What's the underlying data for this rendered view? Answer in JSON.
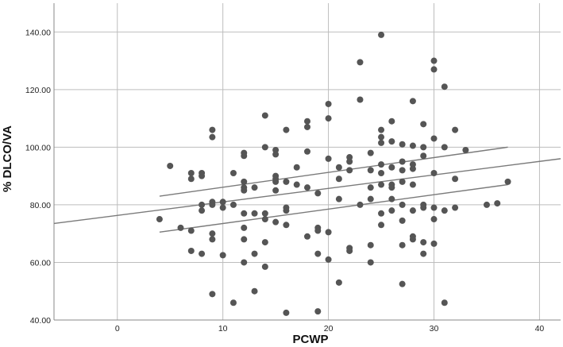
{
  "chart_data": {
    "type": "scatter",
    "title": "",
    "xlabel": "PCWP",
    "ylabel": "% DLCO/VA",
    "xlim": [
      -6,
      42
    ],
    "ylim": [
      40,
      150
    ],
    "x_ticks": [
      0,
      10,
      20,
      30,
      40
    ],
    "x_tick_labels": [
      "0",
      "10",
      "20",
      "30",
      "40"
    ],
    "y_ticks": [
      40,
      60,
      80,
      100,
      120,
      140
    ],
    "y_tick_labels": [
      "40.00",
      "60.00",
      "80.00",
      "100.00",
      "120.00",
      "140.00"
    ],
    "grid": true,
    "legend": "none",
    "colors": {
      "points": "#555555",
      "lines": "#7a7a7a",
      "grid": "#bdbdbd",
      "axis": "#888888"
    },
    "points": [
      [
        4,
        75
      ],
      [
        5,
        93.5
      ],
      [
        6,
        72
      ],
      [
        7,
        91
      ],
      [
        7,
        89
      ],
      [
        7,
        71
      ],
      [
        7,
        64
      ],
      [
        8,
        91
      ],
      [
        8,
        90
      ],
      [
        8,
        80
      ],
      [
        8,
        78
      ],
      [
        8,
        63
      ],
      [
        9,
        106
      ],
      [
        9,
        103.5
      ],
      [
        9,
        81
      ],
      [
        9,
        80
      ],
      [
        9,
        70
      ],
      [
        9,
        68
      ],
      [
        9,
        49
      ],
      [
        10,
        81
      ],
      [
        10,
        79
      ],
      [
        10,
        62.5
      ],
      [
        11,
        91
      ],
      [
        11,
        80
      ],
      [
        11,
        46
      ],
      [
        12,
        98
      ],
      [
        12,
        97
      ],
      [
        12,
        88
      ],
      [
        12,
        86
      ],
      [
        12,
        85
      ],
      [
        12,
        77
      ],
      [
        12,
        72
      ],
      [
        12,
        68
      ],
      [
        12,
        60
      ],
      [
        13,
        86
      ],
      [
        13,
        77
      ],
      [
        13,
        63
      ],
      [
        13,
        50
      ],
      [
        14,
        111
      ],
      [
        14,
        100
      ],
      [
        14,
        77
      ],
      [
        14,
        75
      ],
      [
        14,
        67
      ],
      [
        14,
        58.5
      ],
      [
        15,
        99
      ],
      [
        15,
        97.5
      ],
      [
        15,
        90
      ],
      [
        15,
        89
      ],
      [
        15,
        88
      ],
      [
        15,
        85
      ],
      [
        15,
        74
      ],
      [
        16,
        106
      ],
      [
        16,
        88
      ],
      [
        16,
        79
      ],
      [
        16,
        78
      ],
      [
        16,
        73
      ],
      [
        16,
        42.5
      ],
      [
        17,
        93
      ],
      [
        17,
        87
      ],
      [
        18,
        109
      ],
      [
        18,
        107
      ],
      [
        18,
        98.5
      ],
      [
        18,
        86
      ],
      [
        18,
        69
      ],
      [
        19,
        84
      ],
      [
        19,
        72
      ],
      [
        19,
        71
      ],
      [
        19,
        63
      ],
      [
        19,
        43
      ],
      [
        20,
        115
      ],
      [
        20,
        110
      ],
      [
        20,
        96
      ],
      [
        20,
        70.5
      ],
      [
        20,
        61
      ],
      [
        21,
        93
      ],
      [
        21,
        89
      ],
      [
        21,
        82
      ],
      [
        21,
        53
      ],
      [
        22,
        96.5
      ],
      [
        22,
        95
      ],
      [
        22,
        92
      ],
      [
        22,
        65
      ],
      [
        22,
        64
      ],
      [
        23,
        129.5
      ],
      [
        23,
        116.5
      ],
      [
        23,
        80
      ],
      [
        24,
        98
      ],
      [
        24,
        92
      ],
      [
        24,
        86
      ],
      [
        24,
        82
      ],
      [
        24,
        66
      ],
      [
        24,
        60
      ],
      [
        25,
        139
      ],
      [
        25,
        106
      ],
      [
        25,
        103.5
      ],
      [
        25,
        101.5
      ],
      [
        25,
        94
      ],
      [
        25,
        91
      ],
      [
        25,
        87
      ],
      [
        25,
        77
      ],
      [
        25,
        73
      ],
      [
        26,
        109
      ],
      [
        26,
        102
      ],
      [
        26,
        93
      ],
      [
        26,
        87
      ],
      [
        26,
        86
      ],
      [
        26,
        82
      ],
      [
        26,
        78
      ],
      [
        27,
        101
      ],
      [
        27,
        95
      ],
      [
        27,
        92
      ],
      [
        27,
        88
      ],
      [
        27,
        80
      ],
      [
        27,
        74.5
      ],
      [
        27,
        66
      ],
      [
        27,
        52.5
      ],
      [
        28,
        116
      ],
      [
        28,
        100.5
      ],
      [
        28,
        94
      ],
      [
        28,
        92.5
      ],
      [
        28,
        87
      ],
      [
        28,
        78
      ],
      [
        28,
        69
      ],
      [
        28,
        68
      ],
      [
        29,
        108
      ],
      [
        29,
        100
      ],
      [
        29,
        97
      ],
      [
        29,
        80
      ],
      [
        29,
        79
      ],
      [
        29,
        67
      ],
      [
        29,
        63
      ],
      [
        30,
        130
      ],
      [
        30,
        127
      ],
      [
        30,
        103
      ],
      [
        30,
        91
      ],
      [
        30,
        79
      ],
      [
        30,
        75
      ],
      [
        30,
        66.5
      ],
      [
        31,
        121
      ],
      [
        31,
        100
      ],
      [
        31,
        78
      ],
      [
        31,
        46
      ],
      [
        32,
        106
      ],
      [
        32,
        89
      ],
      [
        32,
        79
      ],
      [
        33,
        99
      ],
      [
        35,
        80
      ],
      [
        36,
        80.5
      ],
      [
        37,
        88
      ]
    ],
    "lines": [
      {
        "name": "",
        "role": "fit",
        "x": [
          -6,
          42
        ],
        "y": [
          73.5,
          96
        ]
      },
      {
        "name": "",
        "role": "upper",
        "x": [
          4,
          37
        ],
        "y": [
          83,
          100
        ]
      },
      {
        "name": "",
        "role": "lower",
        "x": [
          4,
          37
        ],
        "y": [
          70.5,
          87
        ]
      }
    ]
  }
}
